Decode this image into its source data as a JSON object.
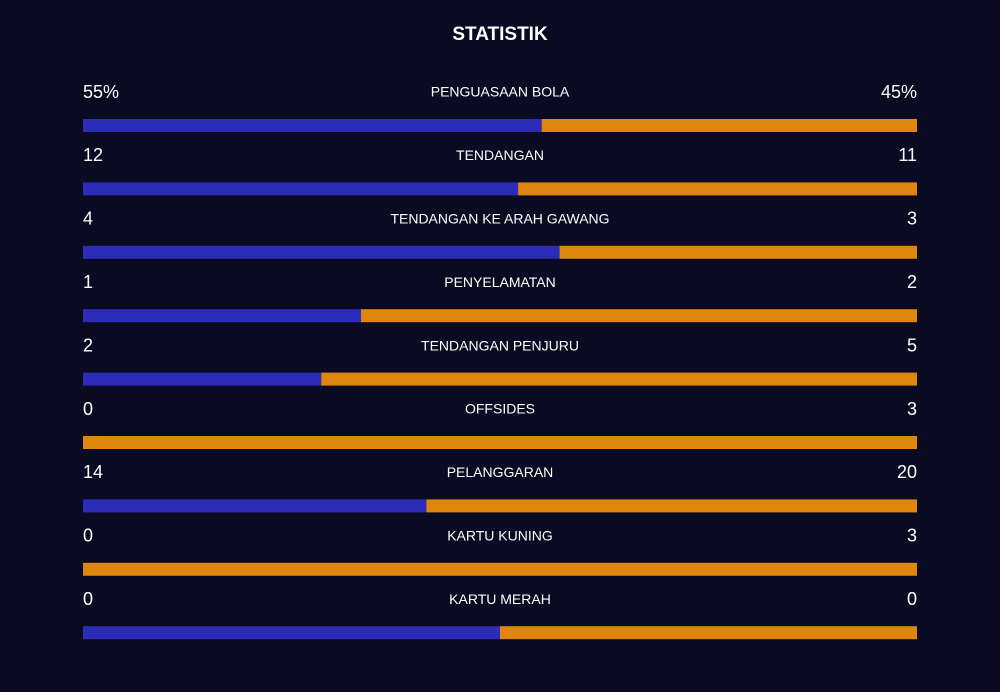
{
  "chart_data": {
    "type": "split-bar",
    "title": "STATISTIK",
    "categories": [
      "PENGUASAAN BOLA",
      "TENDANGAN",
      "TENDANGAN KE ARAH GAWANG",
      "PENYELAMATAN",
      "TENDANGAN PENJURU",
      "OFFSIDES",
      "PELANGGARAN",
      "KARTU KUNING",
      "KARTU MERAH"
    ],
    "series": [
      {
        "color": "#2b2db8",
        "values": [
          55,
          12,
          4,
          1,
          2,
          0,
          14,
          0,
          0
        ],
        "value_labels": [
          "55%",
          "12",
          "4",
          "1",
          "2",
          "0",
          "14",
          "0",
          "0"
        ]
      },
      {
        "color": "#e0860f",
        "values": [
          45,
          11,
          3,
          2,
          5,
          3,
          20,
          3,
          0
        ],
        "value_labels": [
          "45%",
          "11",
          "3",
          "2",
          "5",
          "3",
          "20",
          "3",
          "0"
        ]
      }
    ]
  }
}
